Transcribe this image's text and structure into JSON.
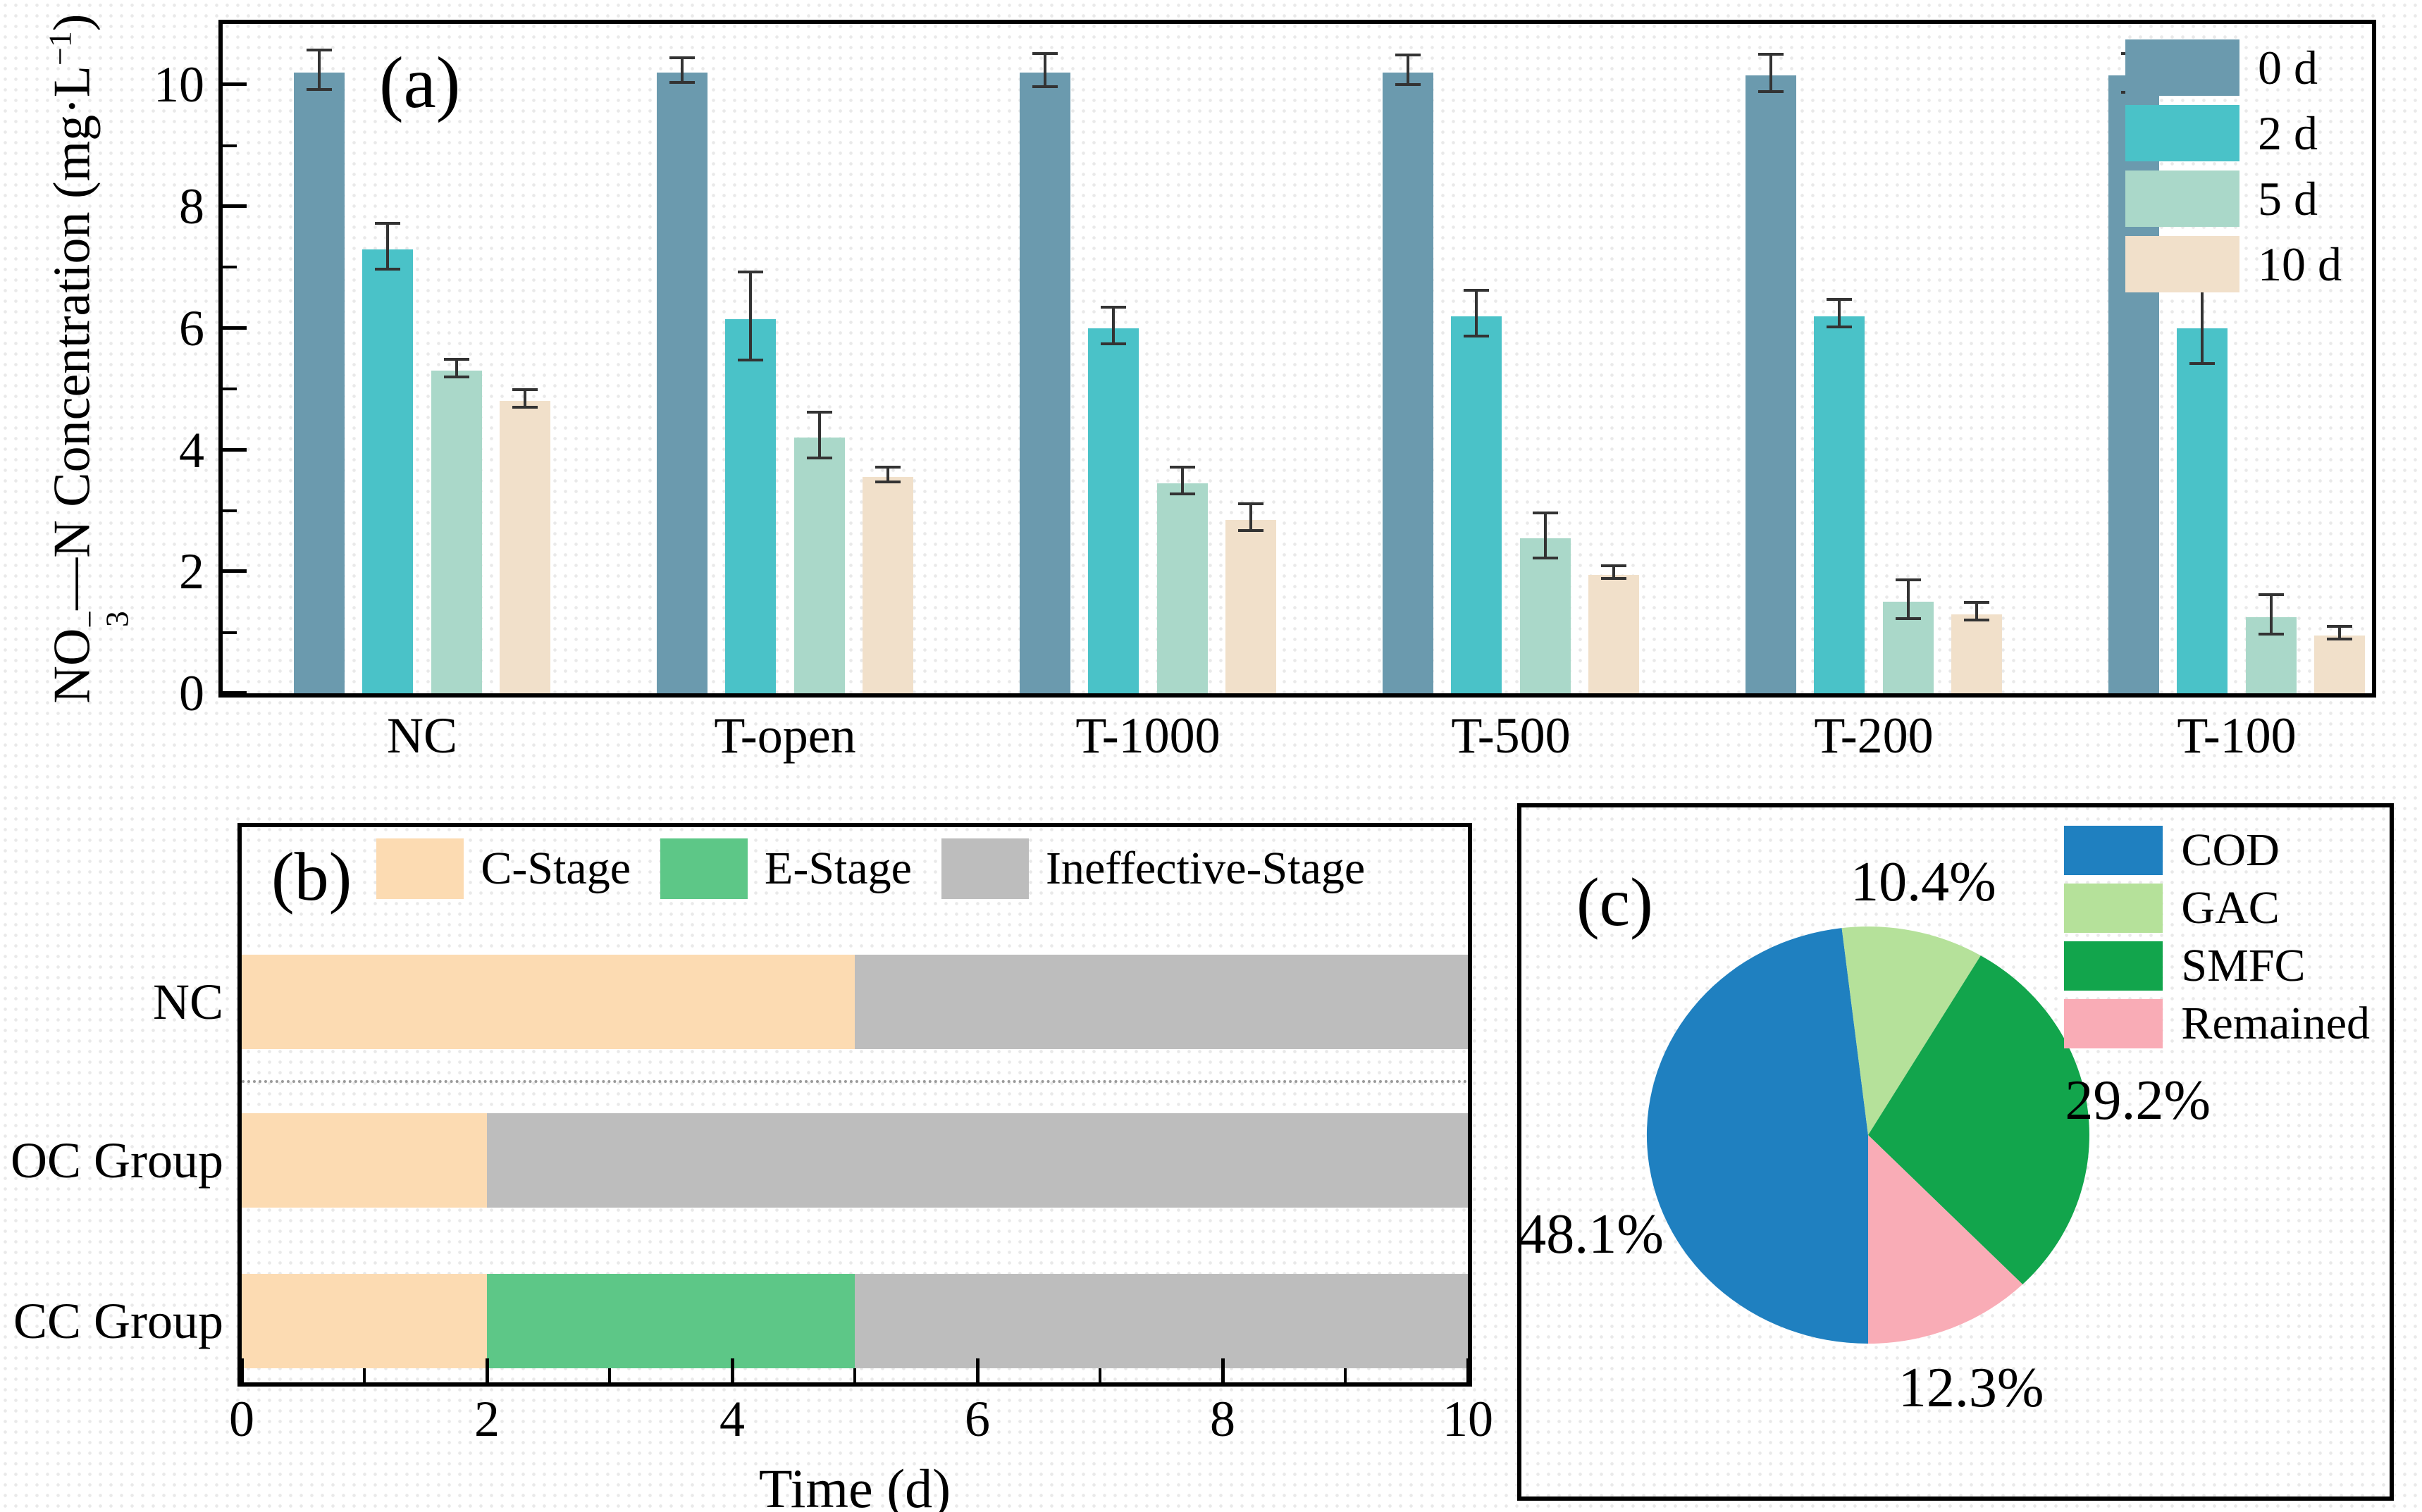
{
  "text": {
    "ylabel_a_p1": "NO",
    "ylabel_a_sup": "−",
    "ylabel_a_sub": "3",
    "ylabel_a_dash": "—",
    "ylabel_a_p2": "N Concentration (mg·L",
    "ylabel_a_sup2": "−1",
    "ylabel_a_p3": ")"
  },
  "chart_data": [
    {
      "id": "a",
      "type": "bar",
      "title": "(a)",
      "ylabel": "NO3−—N Concentration (mg·L−1)",
      "categories": [
        "NC",
        "T-open",
        "T-1000",
        "T-500",
        "T-200",
        "T-100"
      ],
      "series": [
        {
          "name": "0 d",
          "color": "#6b9aae",
          "values": [
            10.2,
            10.2,
            10.2,
            10.2,
            10.15,
            10.15
          ],
          "errors": [
            0.3,
            0.18,
            0.25,
            0.22,
            0.28,
            0.3
          ]
        },
        {
          "name": "2 d",
          "color": "#4ac2c8",
          "values": [
            7.3,
            6.15,
            6.0,
            6.2,
            6.2,
            6.0
          ],
          "errors": [
            0.35,
            0.7,
            0.28,
            0.35,
            0.2,
            0.6
          ]
        },
        {
          "name": "5 d",
          "color": "#aad8c9",
          "values": [
            5.3,
            4.2,
            3.45,
            2.55,
            1.5,
            1.25
          ],
          "errors": [
            0.12,
            0.35,
            0.2,
            0.35,
            0.3,
            0.3
          ]
        },
        {
          "name": "10 d",
          "color": "#f1e0ca",
          "values": [
            4.8,
            3.55,
            2.85,
            1.95,
            1.3,
            0.95
          ],
          "errors": [
            0.12,
            0.1,
            0.2,
            0.08,
            0.12,
            0.08
          ]
        }
      ],
      "ylim": [
        0,
        11
      ],
      "yticks": [
        0,
        2,
        4,
        6,
        8,
        10
      ],
      "yticks_minor": [
        1,
        3,
        5,
        7,
        9
      ],
      "grid": false,
      "legend_position": "top-right"
    },
    {
      "id": "b",
      "type": "stacked-bar-horizontal",
      "title": "(b)",
      "categories": [
        "NC",
        "OC Group",
        "CC Group"
      ],
      "series": [
        {
          "name": "C-Stage",
          "color": "#fcdbb2",
          "values": [
            5,
            2,
            2
          ]
        },
        {
          "name": "E-Stage",
          "color": "#5dc787",
          "values": [
            0,
            0,
            3
          ]
        },
        {
          "name": "Ineffective-Stage",
          "color": "#bdbdbd",
          "values": [
            5,
            8,
            5
          ]
        }
      ],
      "xlabel": "Time (d)",
      "xlim": [
        0,
        10
      ],
      "xticks": [
        0,
        2,
        4,
        6,
        8,
        10
      ],
      "xticks_minor": [
        1,
        3,
        5,
        7,
        9
      ],
      "separator_after_row": 0,
      "grid": false,
      "legend_position": "top"
    },
    {
      "id": "c",
      "type": "pie",
      "title": "(c)",
      "slices": [
        {
          "label": "COD",
          "value": 48.1,
          "pct": "48.1%",
          "color": "#1f80c0"
        },
        {
          "label": "GAC",
          "value": 10.4,
          "pct": "10.4%",
          "color": "#b5e19a"
        },
        {
          "label": "SMFC",
          "value": 29.2,
          "pct": "29.2%",
          "color": "#12a54c"
        },
        {
          "label": "Remained",
          "value": 12.3,
          "pct": "12.3%",
          "color": "#f9acb6"
        }
      ],
      "start_angle_deg": 180,
      "direction": "clockwise",
      "legend_position": "top-right"
    }
  ]
}
